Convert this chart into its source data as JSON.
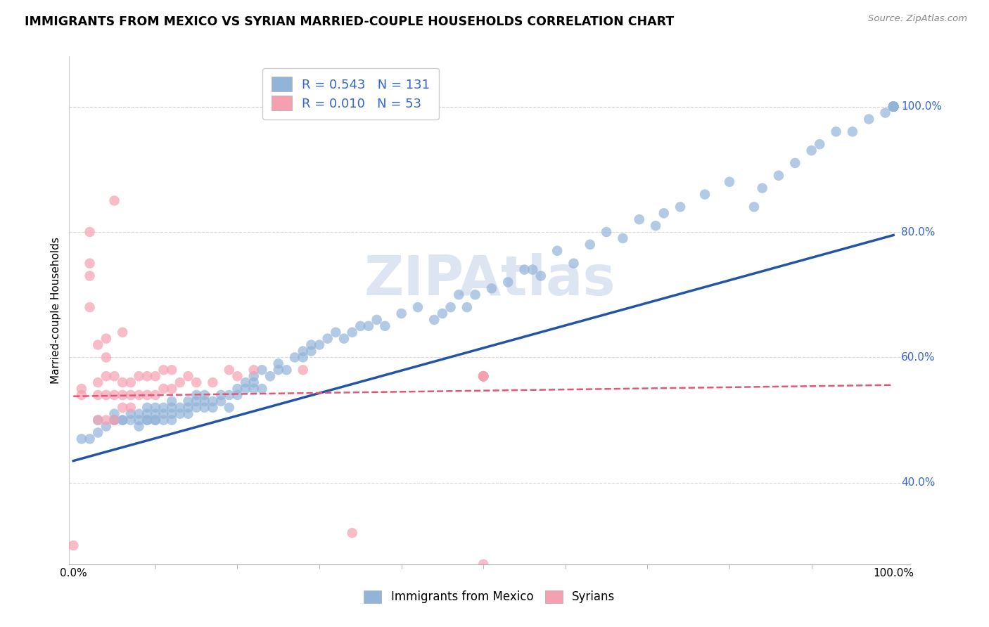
{
  "title": "IMMIGRANTS FROM MEXICO VS SYRIAN MARRIED-COUPLE HOUSEHOLDS CORRELATION CHART",
  "source": "Source: ZipAtlas.com",
  "xlabel_bottom": [
    "Immigrants from Mexico",
    "Syrians"
  ],
  "ylabel": "Married-couple Households",
  "mexico_R": "0.543",
  "mexico_N": "131",
  "syria_R": "0.010",
  "syria_N": "53",
  "mexico_color": "#92b4d8",
  "syria_color": "#f5a0b0",
  "mexico_line_color": "#2255aa",
  "syria_line_color": "#e05878",
  "watermark": "ZIPAtlas",
  "watermark_color": "#c5d5e8",
  "background_color": "#ffffff",
  "grid_color": "#d0d0d0",
  "right_label_color": "#3366cc",
  "mexico_line_x": [
    0.0,
    1.0
  ],
  "mexico_line_y": [
    0.435,
    0.795
  ],
  "syria_line_x": [
    0.0,
    1.0
  ],
  "syria_line_y": [
    0.538,
    0.556
  ],
  "xlim": [
    -0.005,
    1.02
  ],
  "ylim": [
    0.27,
    1.08
  ],
  "right_yticks": [
    0.4,
    0.6,
    0.8,
    1.0
  ],
  "right_ylabels": [
    "40.0%",
    "60.0%",
    "80.0%",
    "100.0%"
  ],
  "mexico_x": [
    0.01,
    0.02,
    0.03,
    0.03,
    0.04,
    0.05,
    0.05,
    0.05,
    0.06,
    0.06,
    0.07,
    0.07,
    0.08,
    0.08,
    0.08,
    0.09,
    0.09,
    0.09,
    0.09,
    0.1,
    0.1,
    0.1,
    0.1,
    0.11,
    0.11,
    0.11,
    0.12,
    0.12,
    0.12,
    0.12,
    0.13,
    0.13,
    0.14,
    0.14,
    0.14,
    0.15,
    0.15,
    0.15,
    0.16,
    0.16,
    0.16,
    0.17,
    0.17,
    0.18,
    0.18,
    0.19,
    0.19,
    0.2,
    0.2,
    0.21,
    0.21,
    0.22,
    0.22,
    0.22,
    0.23,
    0.23,
    0.24,
    0.25,
    0.25,
    0.26,
    0.27,
    0.28,
    0.28,
    0.29,
    0.29,
    0.3,
    0.31,
    0.32,
    0.33,
    0.34,
    0.35,
    0.36,
    0.37,
    0.38,
    0.4,
    0.42,
    0.44,
    0.45,
    0.46,
    0.47,
    0.48,
    0.49,
    0.51,
    0.53,
    0.55,
    0.56,
    0.57,
    0.59,
    0.61,
    0.63,
    0.65,
    0.67,
    0.69,
    0.71,
    0.72,
    0.74,
    0.77,
    0.8,
    0.83,
    0.84,
    0.86,
    0.88,
    0.9,
    0.91,
    0.93,
    0.95,
    0.97,
    0.99,
    1.0,
    1.0,
    1.0,
    1.0,
    1.0,
    1.0,
    1.0,
    1.0,
    1.0,
    1.0,
    1.0,
    1.0,
    1.0,
    1.0,
    1.0,
    1.0,
    1.0,
    1.0,
    1.0,
    1.0,
    1.0,
    1.0,
    1.0
  ],
  "mexico_y": [
    0.47,
    0.47,
    0.48,
    0.5,
    0.49,
    0.5,
    0.51,
    0.5,
    0.5,
    0.5,
    0.51,
    0.5,
    0.51,
    0.5,
    0.49,
    0.5,
    0.51,
    0.5,
    0.52,
    0.5,
    0.51,
    0.52,
    0.5,
    0.51,
    0.52,
    0.5,
    0.52,
    0.51,
    0.5,
    0.53,
    0.52,
    0.51,
    0.52,
    0.53,
    0.51,
    0.52,
    0.53,
    0.54,
    0.53,
    0.52,
    0.54,
    0.53,
    0.52,
    0.53,
    0.54,
    0.54,
    0.52,
    0.55,
    0.54,
    0.55,
    0.56,
    0.55,
    0.56,
    0.57,
    0.55,
    0.58,
    0.57,
    0.58,
    0.59,
    0.58,
    0.6,
    0.6,
    0.61,
    0.62,
    0.61,
    0.62,
    0.63,
    0.64,
    0.63,
    0.64,
    0.65,
    0.65,
    0.66,
    0.65,
    0.67,
    0.68,
    0.66,
    0.67,
    0.68,
    0.7,
    0.68,
    0.7,
    0.71,
    0.72,
    0.74,
    0.74,
    0.73,
    0.77,
    0.75,
    0.78,
    0.8,
    0.79,
    0.82,
    0.81,
    0.83,
    0.84,
    0.86,
    0.88,
    0.84,
    0.87,
    0.89,
    0.91,
    0.93,
    0.94,
    0.96,
    0.96,
    0.98,
    0.99,
    1.0,
    1.0,
    1.0,
    1.0,
    1.0,
    1.0,
    1.0,
    1.0,
    1.0,
    1.0,
    1.0,
    1.0,
    1.0,
    1.0,
    1.0,
    1.0,
    1.0,
    1.0,
    1.0,
    1.0,
    1.0,
    1.0,
    1.0
  ],
  "syria_x": [
    0.0,
    0.01,
    0.01,
    0.02,
    0.02,
    0.02,
    0.02,
    0.03,
    0.03,
    0.03,
    0.03,
    0.04,
    0.04,
    0.04,
    0.04,
    0.04,
    0.05,
    0.05,
    0.05,
    0.05,
    0.06,
    0.06,
    0.06,
    0.06,
    0.07,
    0.07,
    0.07,
    0.08,
    0.08,
    0.09,
    0.09,
    0.1,
    0.1,
    0.11,
    0.11,
    0.12,
    0.12,
    0.13,
    0.14,
    0.15,
    0.17,
    0.19,
    0.2,
    0.22,
    0.28,
    0.34,
    0.5,
    0.5,
    0.5,
    0.5,
    0.5,
    0.5,
    0.5
  ],
  "syria_y": [
    0.3,
    0.54,
    0.55,
    0.68,
    0.73,
    0.75,
    0.8,
    0.5,
    0.54,
    0.56,
    0.62,
    0.5,
    0.54,
    0.57,
    0.6,
    0.63,
    0.5,
    0.54,
    0.57,
    0.85,
    0.52,
    0.54,
    0.56,
    0.64,
    0.52,
    0.54,
    0.56,
    0.54,
    0.57,
    0.54,
    0.57,
    0.54,
    0.57,
    0.55,
    0.58,
    0.55,
    0.58,
    0.56,
    0.57,
    0.56,
    0.56,
    0.58,
    0.57,
    0.58,
    0.58,
    0.32,
    0.57,
    0.57,
    0.57,
    0.57,
    0.57,
    0.57,
    0.27
  ]
}
